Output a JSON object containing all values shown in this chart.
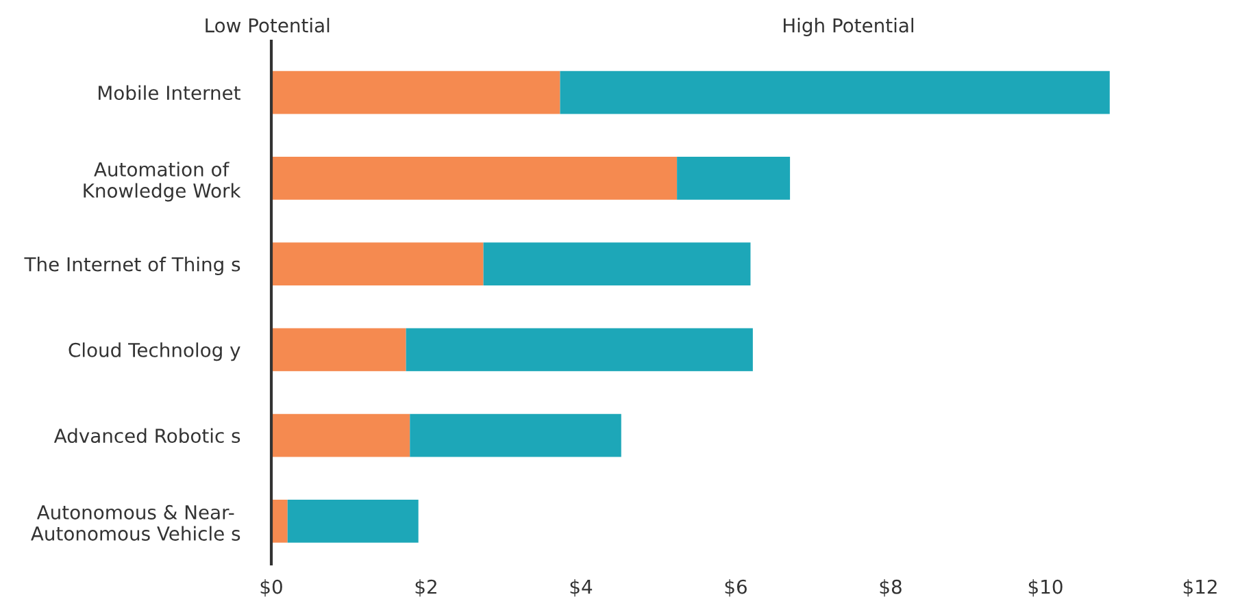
{
  "chart_data": {
    "type": "bar",
    "orientation": "horizontal",
    "stacked": true,
    "categories": [
      "Mobile Internet",
      "Automation of\nKnowledge Work",
      "The Internet of Thing s",
      "Cloud Technolog y",
      "Advanced Robotic s",
      "Autonomous & Near-\nAutonomous Vehicle s"
    ],
    "series": [
      {
        "name": "Low Potential",
        "color": "#f58a50",
        "values": [
          3.73,
          5.24,
          2.74,
          1.74,
          1.79,
          0.21
        ]
      },
      {
        "name": "High Potential",
        "color": "#1da7b8",
        "values": [
          7.1,
          1.46,
          3.45,
          4.48,
          2.73,
          1.69
        ]
      }
    ],
    "xlim": [
      0,
      12
    ],
    "xticks": [
      {
        "value": 0,
        "label": "$0"
      },
      {
        "value": 2,
        "label": "$2"
      },
      {
        "value": 4,
        "label": "$4"
      },
      {
        "value": 6,
        "label": "$6"
      },
      {
        "value": 8,
        "label": "$8"
      },
      {
        "value": 10,
        "label": "$10"
      },
      {
        "value": 12,
        "label": "$12"
      }
    ],
    "grid": false,
    "legend": "top"
  }
}
